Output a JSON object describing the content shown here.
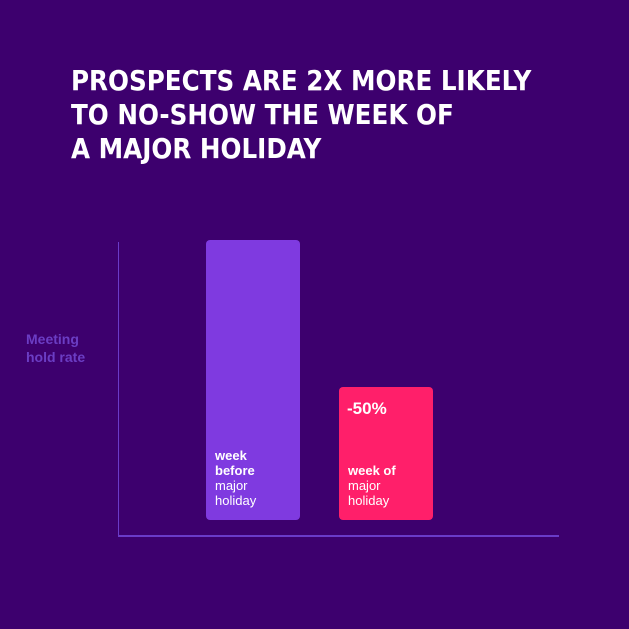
{
  "title_lines": [
    "Prospects are 2x more likely",
    "to no-show the week of",
    "a major holiday"
  ],
  "y_axis": {
    "label_line1": "Meeting",
    "label_line2": "hold rate"
  },
  "bars": [
    {
      "label_bold_1": "week",
      "label_bold_2": "before",
      "label_1": "major",
      "label_2": "holiday",
      "color": "#7f3ae0"
    },
    {
      "value_label": "-50%",
      "label_bold_1": "week of",
      "label_1": "major",
      "label_2": "holiday",
      "color": "#ff1f6a"
    }
  ],
  "chart_data": {
    "type": "bar",
    "title": "PROSPECTS ARE 2X MORE LIKELY TO NO-SHOW THE WEEK OF A MAJOR HOLIDAY",
    "categories": [
      "week before major holiday",
      "week of major holiday"
    ],
    "values": [
      100,
      50
    ],
    "annotations": [
      "-50%"
    ],
    "xlabel": "",
    "ylabel": "Meeting hold rate",
    "ylim": [
      0,
      105
    ],
    "grid": false,
    "legend": null,
    "colors": [
      "#7f3ae0",
      "#ff1f6a"
    ],
    "background": "#3d006e"
  }
}
